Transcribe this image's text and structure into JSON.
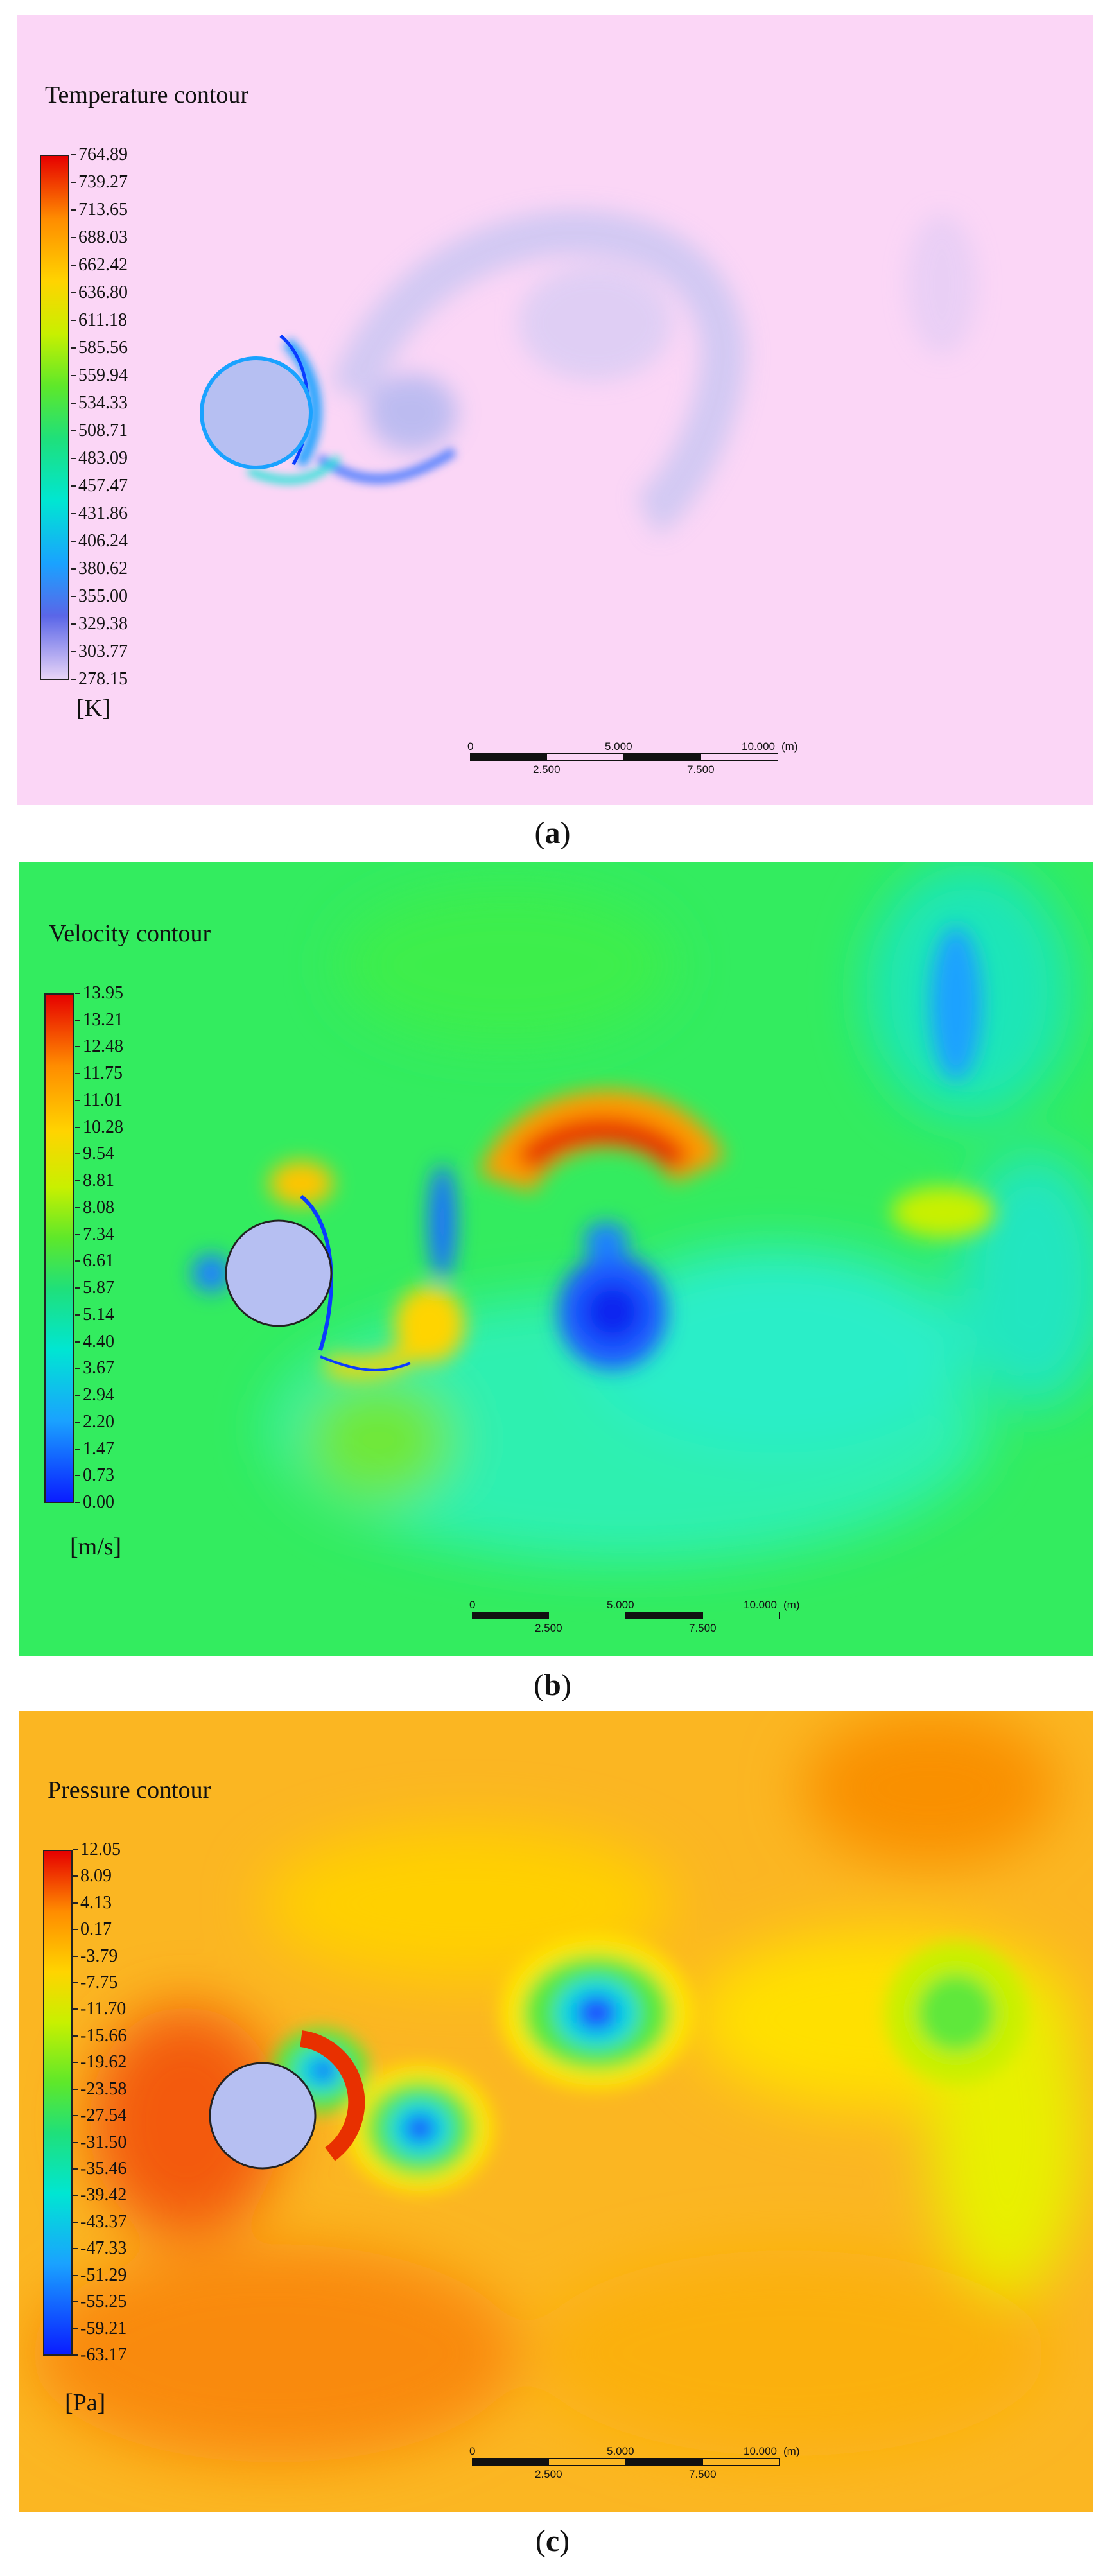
{
  "panels": [
    {
      "id": "a",
      "title": "Temperature contour",
      "unit": "[K]",
      "legend_ticks": [
        "764.89",
        "739.27",
        "713.65",
        "688.03",
        "662.42",
        "636.80",
        "611.18",
        "585.56",
        "559.94",
        "534.33",
        "508.71",
        "483.09",
        "457.47",
        "431.86",
        "406.24",
        "380.62",
        "355.00",
        "329.38",
        "303.77",
        "278.15"
      ],
      "scale_bar": {
        "top_labels": [
          "0",
          "5.000",
          "10.000"
        ],
        "unit_label": "(m)",
        "bottom_labels": [
          "2.500",
          "7.500"
        ]
      },
      "caption_open": "(",
      "caption_letter": "a",
      "caption_close": ")",
      "background": "#fbd6f6"
    },
    {
      "id": "b",
      "title": "Velocity contour",
      "unit": "[m/s]",
      "legend_ticks": [
        "13.95",
        "13.21",
        "12.48",
        "11.75",
        "11.01",
        "10.28",
        "9.54",
        "8.81",
        "8.08",
        "7.34",
        "6.61",
        "5.87",
        "5.14",
        "4.40",
        "3.67",
        "2.94",
        "2.20",
        "1.47",
        "0.73",
        "0.00"
      ],
      "scale_bar": {
        "top_labels": [
          "0",
          "5.000",
          "10.000"
        ],
        "unit_label": "(m)",
        "bottom_labels": [
          "2.500",
          "7.500"
        ]
      },
      "caption_open": "(",
      "caption_letter": "b",
      "caption_close": ")",
      "background": "#33ec5f"
    },
    {
      "id": "c",
      "title": "Pressure contour",
      "unit": "[Pa]",
      "legend_ticks": [
        "12.05",
        "8.09",
        "4.13",
        "0.17",
        "-3.79",
        "-7.75",
        "-11.70",
        "-15.66",
        "-19.62",
        "-23.58",
        "-27.54",
        "-31.50",
        "-35.46",
        "-39.42",
        "-43.37",
        "-47.33",
        "-51.29",
        "-55.25",
        "-59.21",
        "-63.17"
      ],
      "scale_bar": {
        "top_labels": [
          "0",
          "5.000",
          "10.000"
        ],
        "unit_label": "(m)",
        "bottom_labels": [
          "2.500",
          "7.500"
        ]
      },
      "caption_open": "(",
      "caption_letter": "c",
      "caption_close": ")",
      "background": "#fbb622"
    }
  ],
  "colors": {
    "jet_stops": [
      "#e60000",
      "#ff8c00",
      "#ffd400",
      "#c8f000",
      "#5ee82a",
      "#1fe07a",
      "#00e6d2",
      "#1aa2ff",
      "#0a3cff"
    ],
    "temperature_stops": [
      "#e60000",
      "#ff8c00",
      "#ffd400",
      "#c8f000",
      "#5ee82a",
      "#1fe07a",
      "#00e6d2",
      "#1aa2ff",
      "#5a66e8",
      "#e7d3f7"
    ],
    "cylinder": "#b6bff2"
  }
}
